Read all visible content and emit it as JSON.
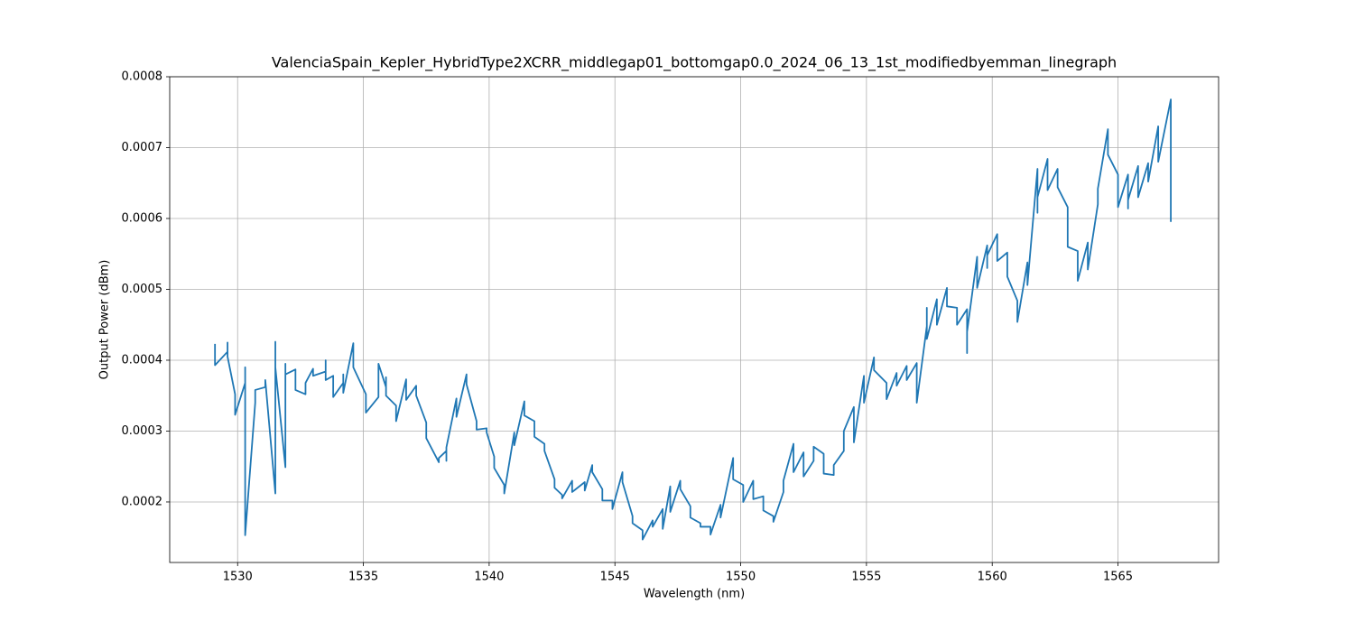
{
  "chart_data": {
    "type": "line",
    "title": "ValenciaSpain_Kepler_HybridType2XCRR_middlegap01_bottomgap0.0_2024_06_13_1st_modifiedbyemman_linegraph",
    "x_label": "Wavelength (nm)",
    "y_label": "Output Power (dBm)",
    "color": "#1f77b4",
    "grid": true,
    "xlim": [
      1527.3,
      1569.0
    ],
    "ylim": [
      0.0001146,
      0.0008
    ],
    "xticks": [
      1530,
      1535,
      1540,
      1545,
      1550,
      1555,
      1560,
      1565
    ],
    "yticks": [
      0.0002,
      0.0003,
      0.0004,
      0.0005,
      0.0006,
      0.0007,
      0.0008
    ],
    "x": [
      1529.1,
      1529.1,
      1529.6,
      1529.6,
      1529.6,
      1529.9,
      1529.9,
      1530.3,
      1530.3,
      1530.3,
      1530.7,
      1530.7,
      1531.1,
      1531.1,
      1531.5,
      1531.5,
      1531.5,
      1531.9,
      1531.9,
      1531.9,
      1532.3,
      1532.3,
      1532.7,
      1532.7,
      1533.0,
      1533.0,
      1533.5,
      1533.5,
      1533.5,
      1533.8,
      1533.8,
      1534.2,
      1534.2,
      1534.2,
      1534.6,
      1534.6,
      1535.1,
      1535.1,
      1535.6,
      1535.6,
      1535.9,
      1535.9,
      1535.9,
      1536.3,
      1536.3,
      1536.7,
      1536.7,
      1537.1,
      1537.1,
      1537.5,
      1537.5,
      1538.0,
      1538.0,
      1538.3,
      1538.3,
      1538.3,
      1538.7,
      1538.7,
      1539.1,
      1539.1,
      1539.5,
      1539.5,
      1539.9,
      1539.9,
      1540.2,
      1540.2,
      1540.6,
      1540.6,
      1541.0,
      1541.0,
      1541.4,
      1541.4,
      1541.8,
      1541.8,
      1542.2,
      1542.2,
      1542.6,
      1542.6,
      1542.9,
      1542.9,
      1543.3,
      1543.3,
      1543.8,
      1543.8,
      1544.1,
      1544.1,
      1544.5,
      1544.5,
      1544.9,
      1544.9,
      1545.3,
      1545.3,
      1545.7,
      1545.7,
      1546.1,
      1546.1,
      1546.5,
      1546.5,
      1546.9,
      1546.9,
      1547.2,
      1547.2,
      1547.2,
      1547.6,
      1547.6,
      1548.0,
      1548.0,
      1548.4,
      1548.4,
      1548.8,
      1548.8,
      1549.2,
      1549.2,
      1549.7,
      1549.7,
      1550.1,
      1550.1,
      1550.5,
      1550.5,
      1550.9,
      1550.9,
      1551.3,
      1551.3,
      1551.7,
      1551.7,
      1552.1,
      1552.1,
      1552.1,
      1552.5,
      1552.5,
      1552.9,
      1552.9,
      1553.3,
      1553.3,
      1553.7,
      1553.7,
      1554.1,
      1554.1,
      1554.5,
      1554.5,
      1554.9,
      1554.9,
      1555.3,
      1555.3,
      1555.8,
      1555.8,
      1556.2,
      1556.2,
      1556.6,
      1556.6,
      1557.0,
      1557.0,
      1557.4,
      1557.4,
      1557.4,
      1557.8,
      1557.8,
      1558.2,
      1558.2,
      1558.6,
      1558.6,
      1559.0,
      1559.0,
      1559.0,
      1559.4,
      1559.4,
      1559.8,
      1559.8,
      1559.8,
      1560.2,
      1560.2,
      1560.6,
      1560.6,
      1561.0,
      1561.0,
      1561.4,
      1561.4,
      1561.8,
      1561.8,
      1561.8,
      1562.2,
      1562.2,
      1562.6,
      1562.6,
      1563.0,
      1563.0,
      1563.4,
      1563.4,
      1563.8,
      1563.8,
      1564.2,
      1564.2,
      1564.6,
      1564.6,
      1565.0,
      1565.0,
      1565.4,
      1565.4,
      1565.4,
      1565.8,
      1565.8,
      1566.2,
      1566.2,
      1566.6,
      1566.6,
      1567.1,
      1567.1,
      1567.1,
      1567.1
    ],
    "values": [
      0.000423,
      0.000393,
      0.000412,
      0.000425,
      0.000405,
      0.000352,
      0.000323,
      0.000368,
      0.00039,
      0.000153,
      0.00034,
      0.000358,
      0.000362,
      0.000372,
      0.000212,
      0.000426,
      0.00039,
      0.000249,
      0.000395,
      0.00038,
      0.000387,
      0.000358,
      0.000352,
      0.000368,
      0.000388,
      0.000378,
      0.000384,
      0.0004,
      0.000372,
      0.000378,
      0.000348,
      0.000368,
      0.00038,
      0.000354,
      0.000424,
      0.00039,
      0.000352,
      0.000326,
      0.000348,
      0.000395,
      0.000362,
      0.000376,
      0.00035,
      0.000336,
      0.000314,
      0.000373,
      0.000344,
      0.000364,
      0.00035,
      0.000312,
      0.00029,
      0.000256,
      0.000262,
      0.000272,
      0.000258,
      0.000277,
      0.000346,
      0.00032,
      0.00038,
      0.000366,
      0.000314,
      0.000302,
      0.000304,
      0.000298,
      0.000264,
      0.000248,
      0.000224,
      0.000212,
      0.000298,
      0.00028,
      0.000342,
      0.000322,
      0.000314,
      0.000292,
      0.000282,
      0.000272,
      0.000232,
      0.00022,
      0.00021,
      0.000205,
      0.00023,
      0.000214,
      0.000228,
      0.000216,
      0.000252,
      0.000242,
      0.000218,
      0.000202,
      0.000202,
      0.00019,
      0.000242,
      0.000228,
      0.00018,
      0.00017,
      0.00016,
      0.000147,
      0.000174,
      0.000165,
      0.00019,
      0.000162,
      0.000222,
      0.000206,
      0.000186,
      0.00023,
      0.000218,
      0.000194,
      0.000178,
      0.00017,
      0.000165,
      0.000165,
      0.000154,
      0.000196,
      0.000178,
      0.000262,
      0.000232,
      0.000224,
      0.0002,
      0.00023,
      0.000204,
      0.000208,
      0.000188,
      0.00018,
      0.000172,
      0.000214,
      0.00023,
      0.000282,
      0.000266,
      0.000242,
      0.00027,
      0.000236,
      0.000258,
      0.000278,
      0.000268,
      0.00024,
      0.000238,
      0.000252,
      0.000272,
      0.0003,
      0.000334,
      0.000284,
      0.000378,
      0.00034,
      0.000404,
      0.000386,
      0.000368,
      0.000345,
      0.000382,
      0.000364,
      0.000392,
      0.000372,
      0.000396,
      0.00034,
      0.000448,
      0.000474,
      0.00043,
      0.000486,
      0.00045,
      0.000502,
      0.000476,
      0.000474,
      0.00045,
      0.000472,
      0.00041,
      0.00044,
      0.000546,
      0.000502,
      0.000562,
      0.00053,
      0.000548,
      0.000578,
      0.00054,
      0.000552,
      0.000518,
      0.000484,
      0.000454,
      0.000538,
      0.000506,
      0.00067,
      0.000608,
      0.00063,
      0.000684,
      0.00064,
      0.00067,
      0.000644,
      0.000616,
      0.00056,
      0.000554,
      0.000512,
      0.000566,
      0.000528,
      0.00062,
      0.000642,
      0.000726,
      0.00069,
      0.000662,
      0.000616,
      0.000662,
      0.000614,
      0.000626,
      0.000674,
      0.00063,
      0.000678,
      0.000652,
      0.00073,
      0.00068,
      0.000768,
      0.00073,
      0.000596,
      0.000636
    ]
  }
}
